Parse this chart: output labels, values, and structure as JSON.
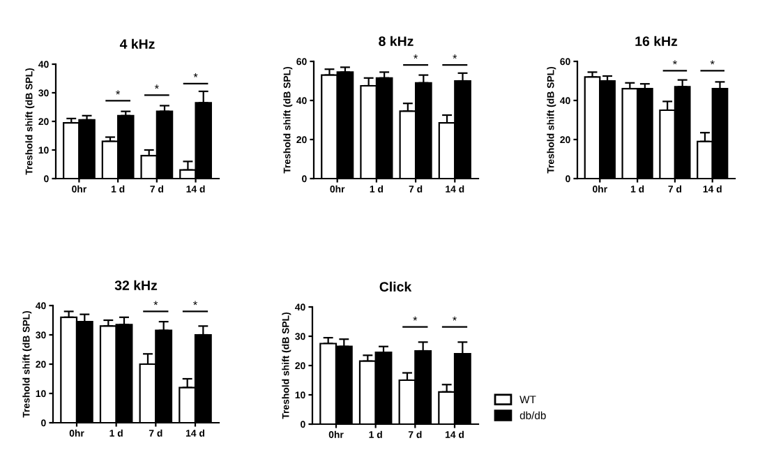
{
  "chart_data": [
    {
      "type": "bar",
      "title": "4 kHz",
      "ylabel": "Treshold shift (dB SPL)",
      "categories": [
        "0hr",
        "1 d",
        "7 d",
        "14 d"
      ],
      "ylim": [
        0,
        40
      ],
      "yticks": [
        0,
        10,
        20,
        30,
        40
      ],
      "grid": false,
      "legend": "bottom right",
      "series": [
        {
          "name": "WT",
          "color": "#ffffff",
          "values": [
            19.5,
            13,
            8,
            3
          ],
          "errors": [
            1.5,
            1.5,
            2,
            3
          ]
        },
        {
          "name": "db/db",
          "color": "#000000",
          "values": [
            20.5,
            22,
            23.5,
            26.5
          ],
          "errors": [
            1.5,
            1.5,
            2,
            4
          ]
        }
      ],
      "annotations": [
        "*",
        "*",
        "*"
      ]
    },
    {
      "type": "bar",
      "title": "8 kHz",
      "ylabel": "Treshold shift (dB SPL)",
      "categories": [
        "0hr",
        "1 d",
        "7 d",
        "14 d"
      ],
      "ylim": [
        0,
        60
      ],
      "yticks": [
        0,
        20,
        40,
        60
      ],
      "grid": false,
      "series": [
        {
          "color": "#ffffff",
          "values": [
            53,
            47.5,
            34.5,
            28.5
          ],
          "errors": [
            3,
            4,
            4,
            4
          ]
        },
        {
          "color": "#000000",
          "values": [
            54.5,
            51.5,
            49,
            50
          ],
          "errors": [
            2.5,
            3,
            4,
            4
          ]
        }
      ],
      "annotations": [
        "*",
        "*"
      ]
    },
    {
      "type": "bar",
      "title": "16 kHz",
      "ylabel": "Treshold shift (dB SPL)",
      "categories": [
        "0hr",
        "1 d",
        "7 d",
        "14 d"
      ],
      "ylim": [
        0,
        60
      ],
      "yticks": [
        0,
        20,
        40,
        60
      ],
      "grid": false,
      "series": [
        {
          "color": "#ffffff",
          "values": [
            52,
            46,
            35,
            19
          ],
          "errors": [
            2.5,
            3,
            4.5,
            4.5
          ]
        },
        {
          "color": "#000000",
          "values": [
            50,
            46,
            47,
            46
          ],
          "errors": [
            2.5,
            2.5,
            3.5,
            3.5
          ]
        }
      ],
      "annotations": [
        "*",
        "*"
      ]
    },
    {
      "type": "bar",
      "title": "32 kHz",
      "ylabel": "Treshold shift (dB SPL)",
      "categories": [
        "0hr",
        "1 d",
        "7 d",
        "14 d"
      ],
      "ylim": [
        0,
        40
      ],
      "yticks": [
        0,
        10,
        20,
        30,
        40
      ],
      "grid": false,
      "series": [
        {
          "color": "#ffffff",
          "values": [
            36,
            33,
            20,
            12
          ],
          "errors": [
            2,
            2,
            3.5,
            3
          ]
        },
        {
          "color": "#000000",
          "values": [
            34.5,
            33.5,
            31.5,
            30
          ],
          "errors": [
            2.5,
            2.5,
            3,
            3
          ]
        }
      ],
      "annotations": [
        "*",
        "*"
      ]
    },
    {
      "type": "bar",
      "title": "Click",
      "ylabel": "Treshold shift (dB SPL)",
      "categories": [
        "0hr",
        "1 d",
        "7 d",
        "14 d"
      ],
      "ylim": [
        0,
        40
      ],
      "yticks": [
        0,
        10,
        20,
        30,
        40
      ],
      "grid": false,
      "series": [
        {
          "color": "#ffffff",
          "values": [
            27.5,
            21.5,
            15,
            11
          ],
          "errors": [
            2,
            2,
            2.5,
            2.5
          ]
        },
        {
          "color": "#000000",
          "values": [
            26.5,
            24.5,
            25,
            24
          ],
          "errors": [
            2.5,
            2,
            3,
            4
          ]
        }
      ],
      "annotations": [
        "*",
        "*"
      ]
    }
  ]
}
